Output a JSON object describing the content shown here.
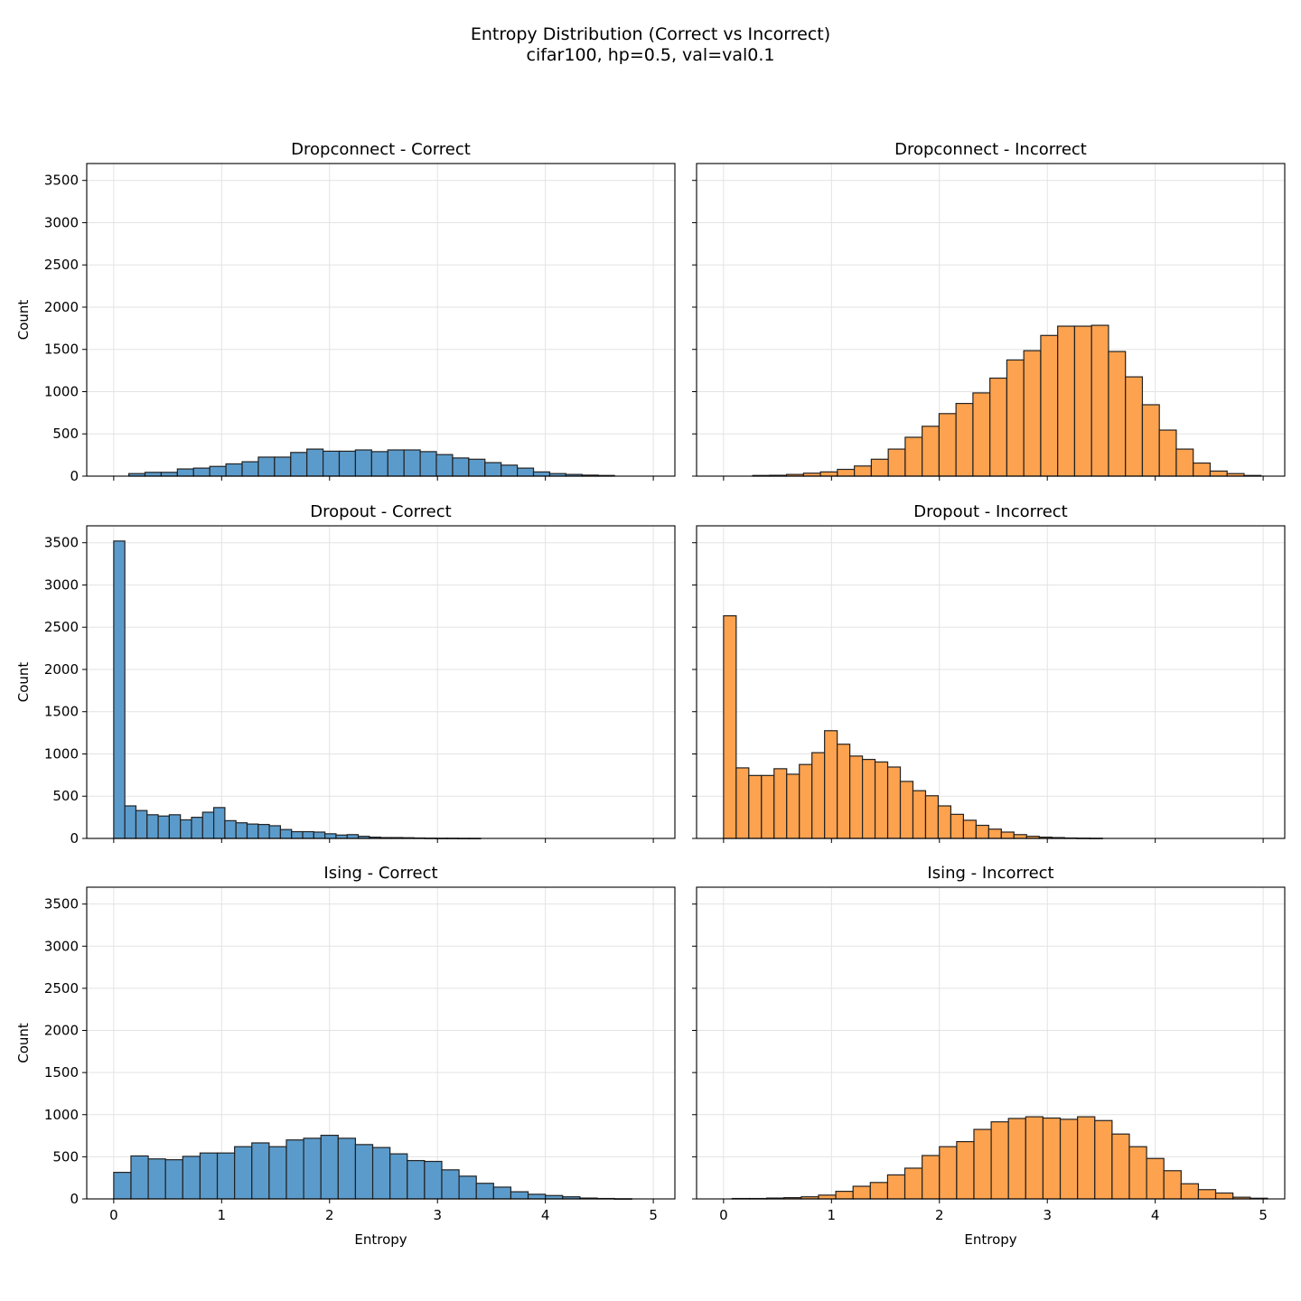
{
  "figure": {
    "title_line1": "Entropy Distribution (Correct vs Incorrect)",
    "title_line2": "cifar100, hp=0.5, val=val0.1"
  },
  "colors": {
    "correct": "#5b9bcb",
    "incorrect": "#fda24e",
    "edge": "#222222",
    "grid": "#e3e3e3"
  },
  "chart_data": [
    {
      "type": "bar",
      "title": "Dropconnect - Correct",
      "ylabel": "Count",
      "xlabel": "",
      "color_key": "correct",
      "xlim": [
        -0.25,
        5.2
      ],
      "ylim": [
        0,
        3700
      ],
      "xticks": [
        0,
        1,
        2,
        3,
        4,
        5
      ],
      "yticks": [
        0,
        500,
        1000,
        1500,
        2000,
        2500,
        3000,
        3500
      ],
      "bin_start": 0.14,
      "bin_width": 0.15,
      "values": [
        30,
        45,
        45,
        85,
        95,
        115,
        145,
        170,
        225,
        225,
        280,
        320,
        295,
        295,
        310,
        290,
        310,
        310,
        290,
        255,
        215,
        200,
        160,
        130,
        95,
        50,
        30,
        20,
        12,
        8
      ]
    },
    {
      "type": "bar",
      "title": "Dropconnect - Incorrect",
      "ylabel": "",
      "xlabel": "",
      "color_key": "incorrect",
      "xlim": [
        -0.25,
        5.2
      ],
      "ylim": [
        0,
        3700
      ],
      "xticks": [
        0,
        1,
        2,
        3,
        4,
        5
      ],
      "yticks": [
        0,
        500,
        1000,
        1500,
        2000,
        2500,
        3000,
        3500
      ],
      "bin_start": 0.27,
      "bin_width": 0.157,
      "values": [
        8,
        10,
        20,
        35,
        50,
        80,
        120,
        200,
        320,
        460,
        590,
        740,
        860,
        985,
        1160,
        1375,
        1485,
        1665,
        1775,
        1775,
        1785,
        1475,
        1175,
        845,
        545,
        320,
        155,
        60,
        30,
        8
      ]
    },
    {
      "type": "bar",
      "title": "Dropout - Correct",
      "ylabel": "Count",
      "xlabel": "",
      "color_key": "correct",
      "xlim": [
        -0.25,
        5.2
      ],
      "ylim": [
        0,
        3700
      ],
      "xticks": [
        0,
        1,
        2,
        3,
        4,
        5
      ],
      "yticks": [
        0,
        500,
        1000,
        1500,
        2000,
        2500,
        3000,
        3500
      ],
      "bin_start": 0.0,
      "bin_width": 0.103,
      "values": [
        3520,
        385,
        330,
        280,
        265,
        280,
        220,
        250,
        310,
        365,
        210,
        185,
        170,
        165,
        150,
        105,
        80,
        80,
        75,
        55,
        40,
        45,
        25,
        15,
        10,
        10,
        8,
        5,
        3,
        2,
        2,
        1,
        1,
        0,
        0,
        0,
        0,
        0,
        0,
        0,
        0,
        0,
        0,
        0,
        0,
        0,
        0,
        0,
        0
      ]
    },
    {
      "type": "bar",
      "title": "Dropout - Incorrect",
      "ylabel": "",
      "xlabel": "",
      "color_key": "incorrect",
      "xlim": [
        -0.25,
        5.2
      ],
      "ylim": [
        0,
        3700
      ],
      "xticks": [
        0,
        1,
        2,
        3,
        4,
        5
      ],
      "yticks": [
        0,
        500,
        1000,
        1500,
        2000,
        2500,
        3000,
        3500
      ],
      "bin_start": 0.0,
      "bin_width": 0.117,
      "values": [
        2635,
        835,
        745,
        745,
        825,
        760,
        875,
        1015,
        1275,
        1115,
        975,
        935,
        905,
        845,
        675,
        565,
        505,
        385,
        285,
        215,
        155,
        110,
        75,
        45,
        25,
        15,
        10,
        5,
        3,
        2
      ]
    },
    {
      "type": "bar",
      "title": "Ising - Correct",
      "ylabel": "Count",
      "xlabel": "Entropy",
      "color_key": "correct",
      "xlim": [
        -0.25,
        5.2
      ],
      "ylim": [
        0,
        3700
      ],
      "xticks": [
        0,
        1,
        2,
        3,
        4,
        5
      ],
      "yticks": [
        0,
        500,
        1000,
        1500,
        2000,
        2500,
        3000,
        3500
      ],
      "bin_start": 0.0,
      "bin_width": 0.16,
      "values": [
        315,
        510,
        475,
        465,
        505,
        545,
        545,
        620,
        665,
        620,
        700,
        720,
        755,
        720,
        645,
        610,
        535,
        455,
        445,
        345,
        270,
        185,
        140,
        85,
        55,
        40,
        25,
        10,
        5,
        2
      ]
    },
    {
      "type": "bar",
      "title": "Ising - Incorrect",
      "ylabel": "",
      "xlabel": "Entropy",
      "color_key": "incorrect",
      "xlim": [
        -0.25,
        5.2
      ],
      "ylim": [
        0,
        3700
      ],
      "xticks": [
        0,
        1,
        2,
        3,
        4,
        5
      ],
      "yticks": [
        0,
        500,
        1000,
        1500,
        2000,
        2500,
        3000,
        3500
      ],
      "bin_start": 0.08,
      "bin_width": 0.16,
      "values": [
        5,
        5,
        10,
        15,
        25,
        45,
        90,
        150,
        195,
        285,
        365,
        515,
        620,
        680,
        825,
        915,
        955,
        975,
        960,
        945,
        975,
        930,
        770,
        620,
        480,
        335,
        180,
        110,
        70,
        20,
        8
      ]
    }
  ]
}
